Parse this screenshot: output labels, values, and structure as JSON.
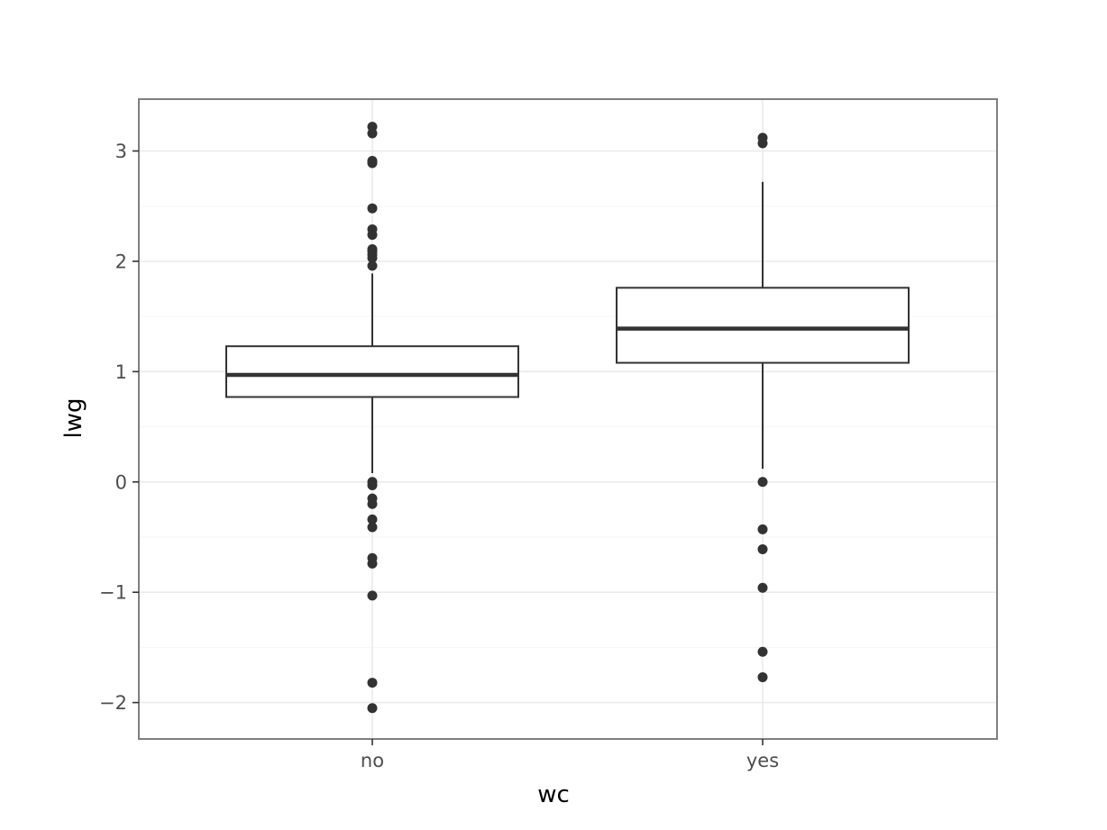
{
  "chart_data": {
    "type": "boxplot",
    "title": "",
    "xlabel": "wc",
    "ylabel": "lwg",
    "categories": [
      "no",
      "yes"
    ],
    "ylim": [
      -2.33,
      3.47
    ],
    "yticks": [
      -2,
      -1,
      0,
      1,
      2,
      3
    ],
    "ytick_labels": [
      "−2",
      "−1",
      "0",
      "1",
      "2",
      "3"
    ],
    "grid": true,
    "colors": {
      "box_line": "#333333",
      "box_fill": "#ffffff",
      "grid": "#ebebeb",
      "border": "#7f7f7f"
    },
    "boxes": [
      {
        "category": "no",
        "whisker_low": 0.08,
        "q1": 0.77,
        "median": 0.97,
        "q3": 1.23,
        "whisker_high": 1.89,
        "outliers": [
          3.22,
          3.16,
          2.91,
          2.89,
          2.48,
          2.29,
          2.24,
          2.11,
          2.09,
          2.06,
          2.03,
          1.96,
          0.0,
          -0.03,
          -0.15,
          -0.2,
          -0.34,
          -0.41,
          -0.69,
          -0.74,
          -1.03,
          -1.82,
          -2.05
        ]
      },
      {
        "category": "yes",
        "whisker_low": 0.12,
        "q1": 1.08,
        "median": 1.39,
        "q3": 1.76,
        "whisker_high": 2.72,
        "outliers": [
          3.12,
          3.07,
          0.0,
          -0.43,
          -0.61,
          -0.96,
          -1.54,
          -1.77
        ]
      }
    ]
  }
}
